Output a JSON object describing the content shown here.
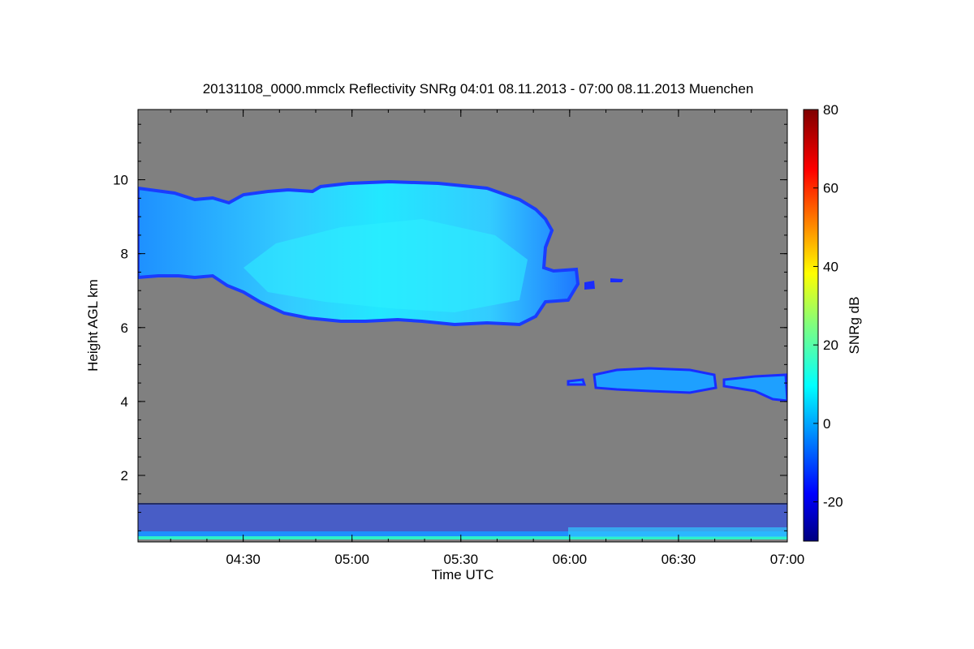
{
  "chart_data": {
    "type": "heatmap",
    "title": "20131108_0000.mmclx Reflectivity SNRg   04:01 08.11.2013 - 07:00 08.11.2013 Muenchen",
    "xlabel": "Time UTC",
    "ylabel": "Height AGL km",
    "x_ticks": [
      "04:30",
      "05:00",
      "05:30",
      "06:00",
      "06:30",
      "07:00"
    ],
    "x_range": [
      "04:01",
      "07:00"
    ],
    "y_ticks": [
      2,
      4,
      6,
      8,
      10
    ],
    "y_range": [
      0.2,
      11.9
    ],
    "background_color": "#808080",
    "colorbar": {
      "label": "SNRg dB",
      "range": [
        -30,
        80
      ],
      "ticks": [
        -20,
        0,
        20,
        40,
        60,
        80
      ],
      "colormap": "jet"
    },
    "features": [
      {
        "name": "upper cloud",
        "time_start": "04:01",
        "time_end": "06:00",
        "base_km": 6.1,
        "top_km": 10.0,
        "snr_range_db": [
          -10,
          15
        ]
      },
      {
        "name": "trailing fragment",
        "time_start": "06:00",
        "time_end": "06:14",
        "base_km": 6.8,
        "top_km": 7.6,
        "snr_range_db": [
          -15,
          0
        ]
      },
      {
        "name": "mid-level layer",
        "time_start": "06:07",
        "time_end": "07:00",
        "base_km": 4.0,
        "top_km": 4.8,
        "snr_range_db": [
          -15,
          10
        ]
      },
      {
        "name": "boundary-layer clutter",
        "time_start": "04:01",
        "time_end": "07:00",
        "base_km": 0.2,
        "top_km": 1.3,
        "snr_range_db": [
          -20,
          30
        ]
      }
    ],
    "reference_line_km": 1.2
  }
}
